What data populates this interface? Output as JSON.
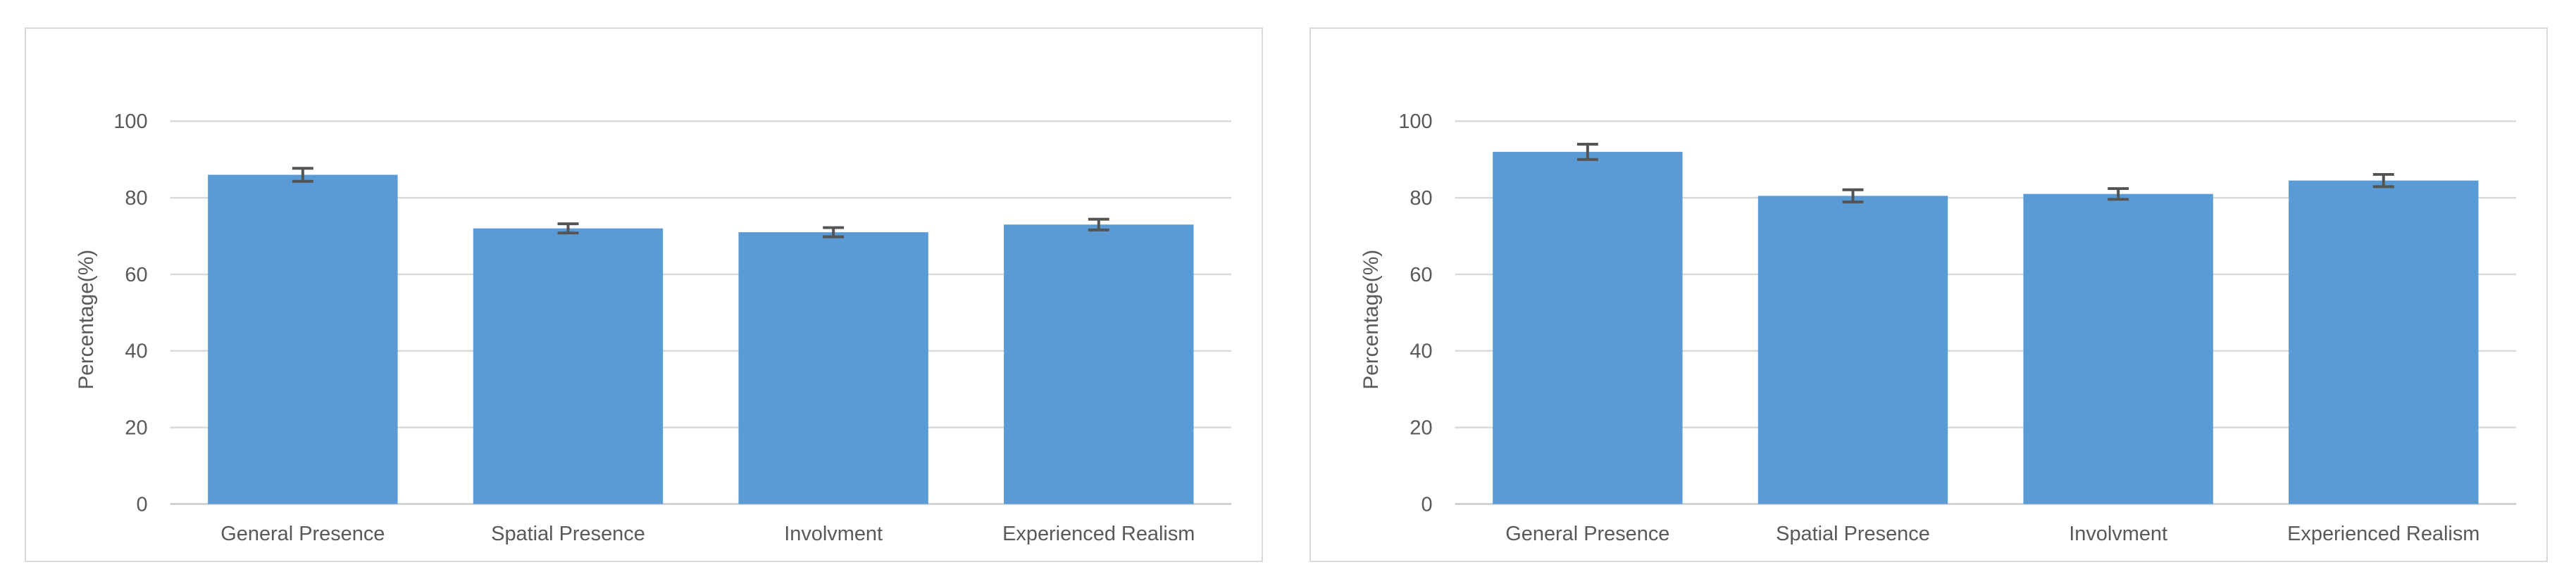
{
  "page": {
    "background": "#FFFFFF",
    "panel_border_color": "#D9D9D9"
  },
  "chart_data": [
    {
      "type": "bar",
      "title": "",
      "categories": [
        "General Presence",
        "Spatial Presence",
        "Involvment",
        "Experienced Realism"
      ],
      "values": [
        86,
        72,
        71,
        73
      ],
      "errors": [
        1.7,
        1.2,
        1.2,
        1.4
      ],
      "xlabel": "",
      "ylabel": "Percentage(%)",
      "ylim": [
        0,
        100
      ],
      "yticks": [
        0,
        20,
        40,
        60,
        80,
        100
      ],
      "grid": true,
      "legend": "none",
      "bar_color": "#5B9BD5",
      "error_color": "#545454",
      "gridline_color": "#D9D9D9",
      "axis_line_color": "#C9C9C9",
      "text_color": "#595959"
    },
    {
      "type": "bar",
      "title": "",
      "categories": [
        "General Presence",
        "Spatial Presence",
        "Involvment",
        "Experienced Realism"
      ],
      "values": [
        92,
        80.5,
        81,
        84.5
      ],
      "errors": [
        2.0,
        1.6,
        1.4,
        1.6
      ],
      "xlabel": "",
      "ylabel": "Percentage(%)",
      "ylim": [
        0,
        100
      ],
      "yticks": [
        0,
        20,
        40,
        60,
        80,
        100
      ],
      "grid": true,
      "legend": "none",
      "bar_color": "#5B9BD5",
      "error_color": "#545454",
      "gridline_color": "#D9D9D9",
      "axis_line_color": "#C9C9C9",
      "text_color": "#595959"
    }
  ]
}
